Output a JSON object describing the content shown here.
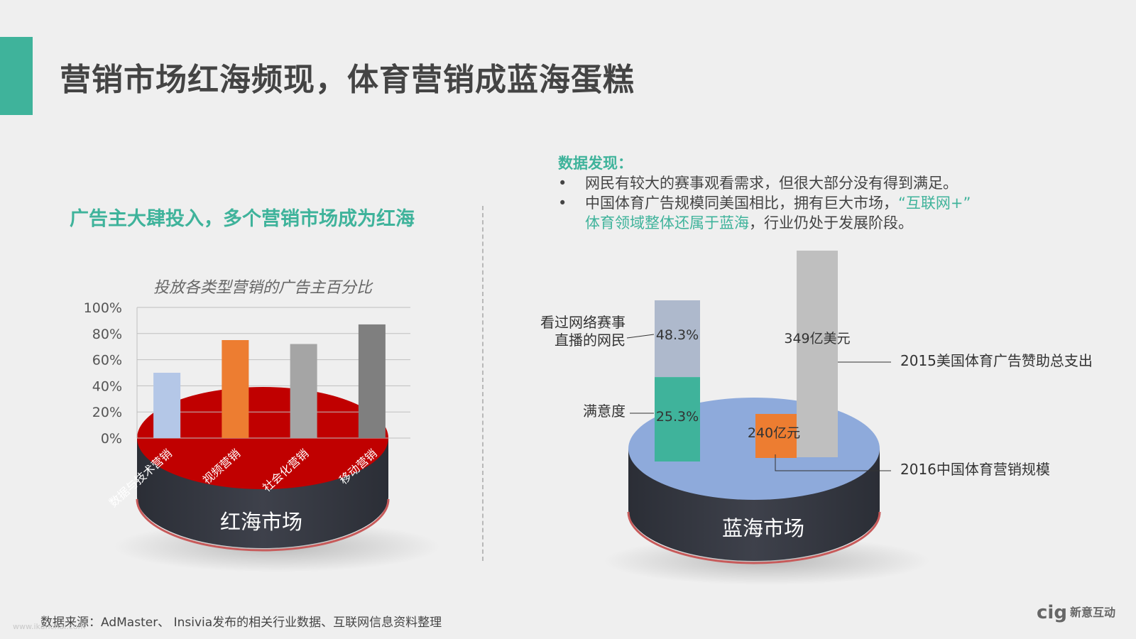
{
  "page": {
    "title": "营销市场红海频现，体育营销成蓝海蛋糕",
    "left_subtitle": "广告主大肆投入，多个营销市场成为红海",
    "source": "数据来源：AdMaster、 Insivia发布的相关行业数据、互联网信息资料整理",
    "logo_mark": "cig",
    "logo_text": "新意互动",
    "watermark": "www.ikanchai.com"
  },
  "findings": {
    "title": "数据发现：",
    "bullet1": "网民有较大的赛事观看需求，但很大部分没有得到满足。",
    "bullet2_pre": "中国体育广告规模同美国相比，拥有巨大市场，",
    "bullet2_hl1": "“互联网+”",
    "bullet2_hl2": "体育领域整体还属于蓝海",
    "bullet2_post": "，行业仍处于发展阶段。"
  },
  "chart_data": [
    {
      "type": "bar",
      "title": "投放各类型营销的广告主百分比",
      "categories": [
        "数据与技术营销",
        "视频营销",
        "社会化营销",
        "移动营销"
      ],
      "values": [
        50,
        75,
        72,
        87
      ],
      "ylim": [
        0,
        100
      ],
      "yticks": [
        "100%",
        "80%",
        "60%",
        "40%",
        "20%",
        "0%"
      ],
      "grid": true,
      "colors": [
        "#b4c7e7",
        "#ed7d31",
        "#a5a5a5",
        "#7f7f7f"
      ],
      "base_label": "红海市场",
      "base_color": "#c00000"
    },
    {
      "type": "bar",
      "base_label": "蓝海市场",
      "base_color": "#8eaadb",
      "bars": [
        {
          "segments": [
            {
              "label": "满意度",
              "value_label": "25.3%",
              "value": 25.3,
              "color": "#3fb39b"
            },
            {
              "label": "看过网络赛事直播的网民",
              "value_label": "48.3%",
              "value": 48.3,
              "color": "#aeb9cc"
            }
          ]
        },
        {
          "label": "2016中国体育营销规模",
          "value_label": "240亿元",
          "value": 240,
          "color": "#ed7d31"
        },
        {
          "label": "2015美国体育广告赞助总支出",
          "value_label": "349亿美元",
          "value": 349,
          "color": "#bfbfbf"
        }
      ],
      "callouts": {
        "watched_line1": "看过网络赛事",
        "watched_line2": "直播的网民",
        "satisfaction": "满意度",
        "us_spend": "2015美国体育广告赞助总支出",
        "cn_scale": "2016中国体育营销规模"
      }
    }
  ]
}
